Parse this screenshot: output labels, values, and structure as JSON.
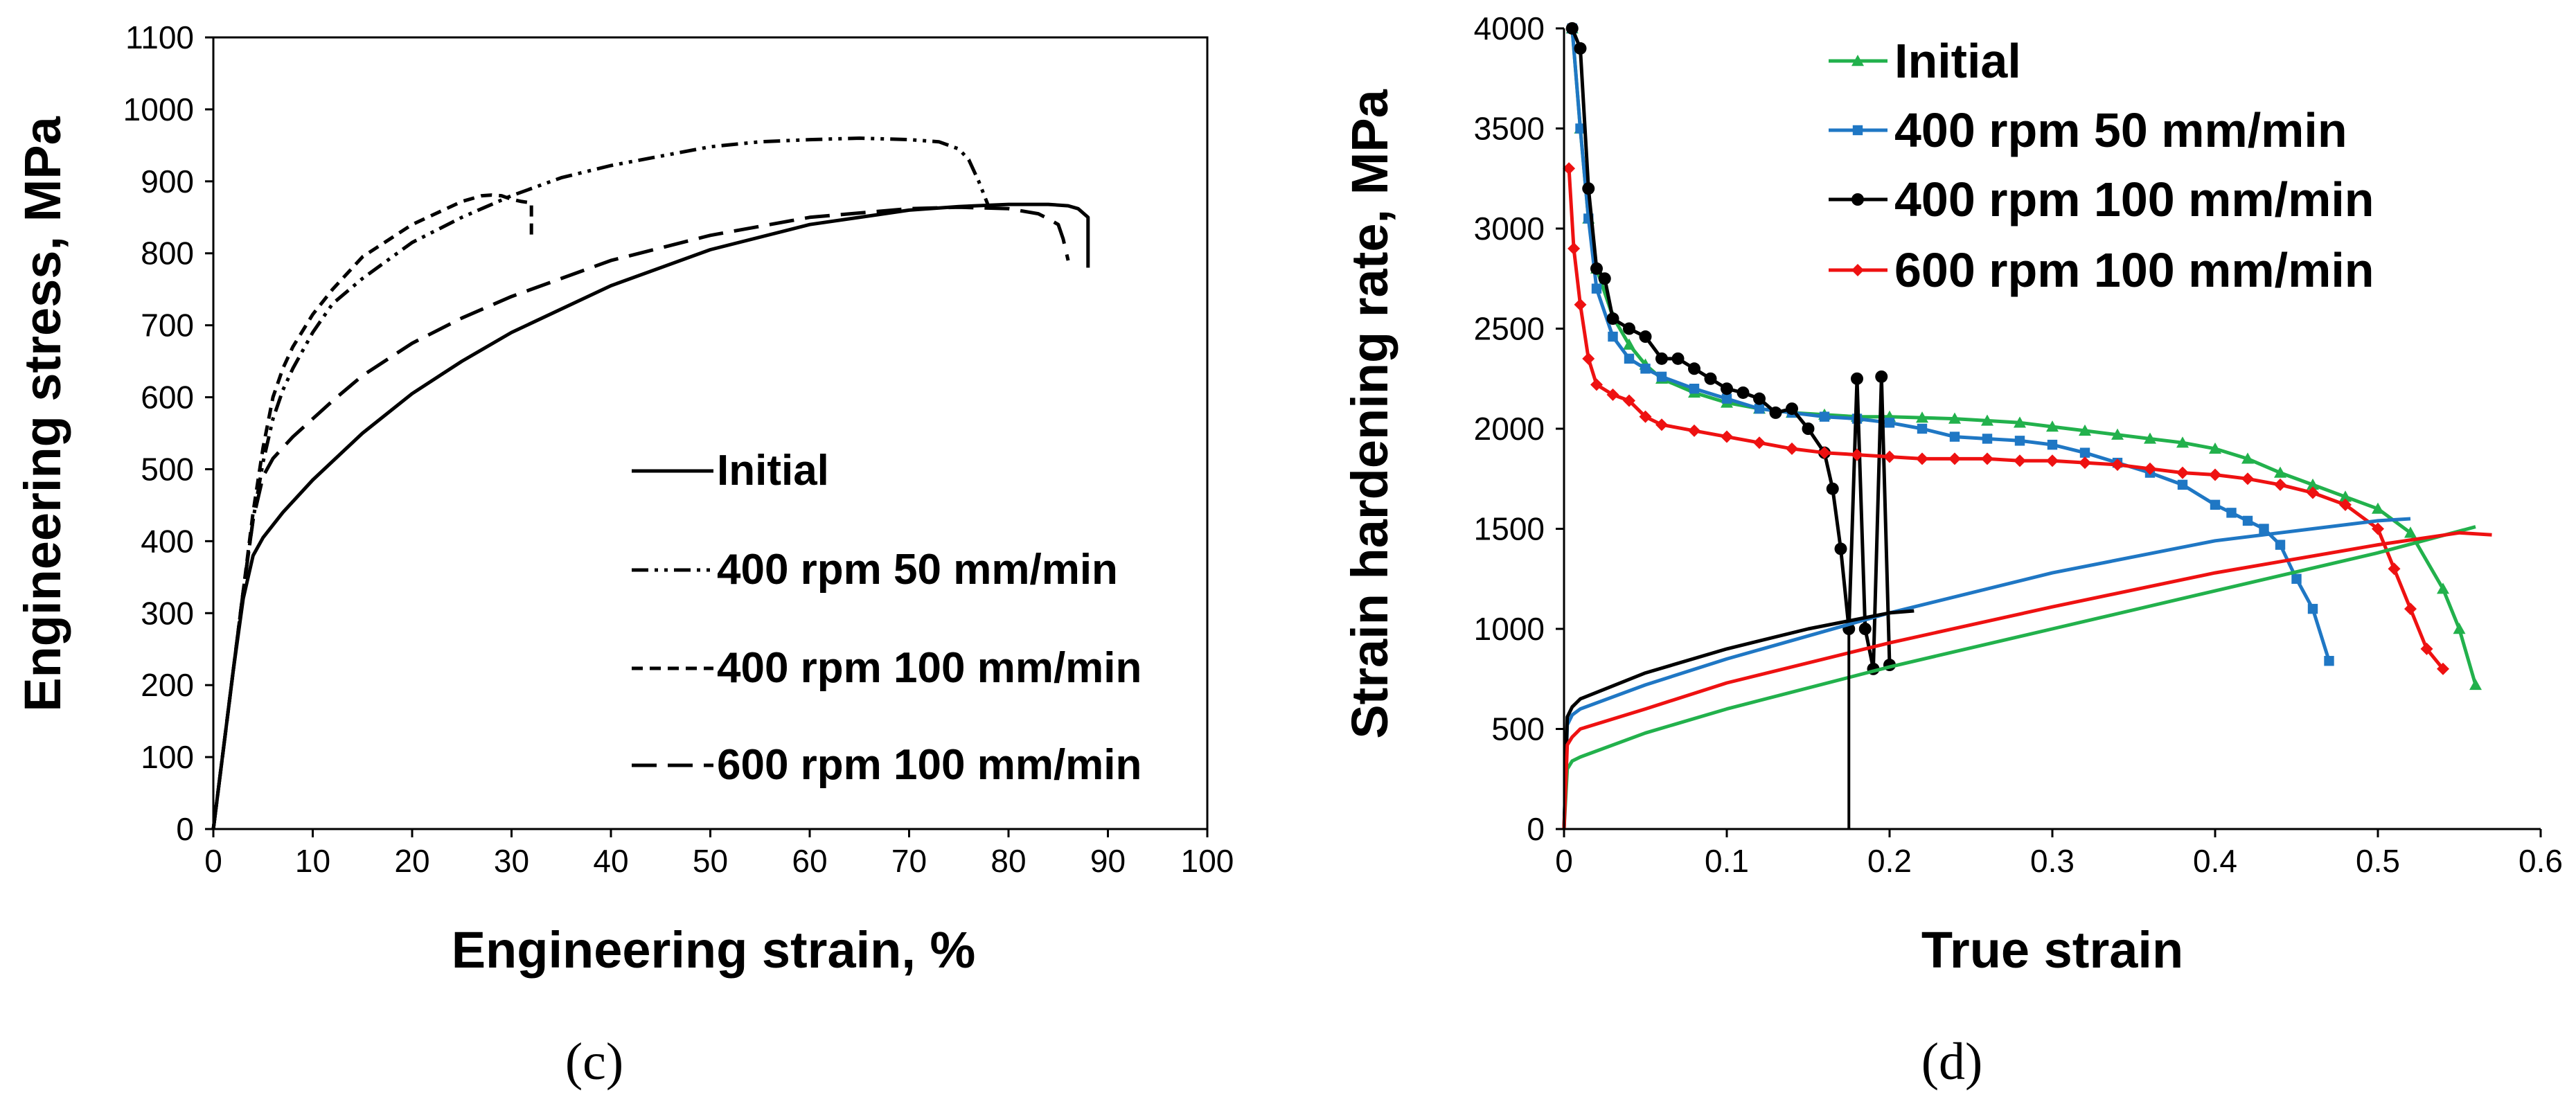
{
  "colors": {
    "green": "#22b14c",
    "blue": "#1f77c4",
    "black": "#000000",
    "red": "#ee1111"
  },
  "panels": {
    "c": "(c)",
    "d": "(d)"
  },
  "chart_data": [
    {
      "type": "line",
      "panel": "(c)",
      "xlabel": "Engineering strain, %",
      "ylabel": "Engineering stress, MPa",
      "xlim": [
        0,
        100
      ],
      "ylim": [
        0,
        1100
      ],
      "xticks": [
        "0",
        "10",
        "20",
        "30",
        "40",
        "50",
        "60",
        "70",
        "80",
        "90",
        "100"
      ],
      "yticks": [
        "0",
        "100",
        "200",
        "300",
        "400",
        "500",
        "600",
        "700",
        "800",
        "900",
        "1000",
        "1100"
      ],
      "grid": false,
      "legend_position": "bottom-right",
      "series": [
        {
          "name": "Initial",
          "dash": "solid",
          "color": "#000000",
          "x": [
            0,
            1,
            2,
            3,
            4,
            5,
            7,
            10,
            15,
            20,
            25,
            30,
            40,
            50,
            60,
            70,
            75,
            80,
            84,
            86,
            87,
            88,
            88
          ],
          "y": [
            0,
            110,
            220,
            320,
            380,
            405,
            440,
            485,
            550,
            605,
            650,
            690,
            755,
            805,
            840,
            860,
            865,
            868,
            868,
            866,
            862,
            850,
            780
          ]
        },
        {
          "name": "400 rpm 50 mm/min",
          "dash": "dashdotdot",
          "color": "#000000",
          "x": [
            0,
            1,
            2,
            3,
            4,
            5,
            6,
            7,
            8,
            10,
            12,
            15,
            20,
            25,
            30,
            35,
            40,
            50,
            55,
            60,
            65,
            70,
            73,
            75,
            76,
            77,
            78
          ],
          "y": [
            0,
            110,
            220,
            330,
            430,
            510,
            570,
            610,
            640,
            690,
            730,
            765,
            815,
            850,
            880,
            905,
            922,
            948,
            955,
            958,
            960,
            958,
            955,
            945,
            930,
            900,
            865
          ]
        },
        {
          "name": "400 rpm 100 mm/min",
          "dash": "dash-short",
          "color": "#000000",
          "x": [
            0,
            1,
            2,
            3,
            4,
            5,
            6,
            7,
            8,
            10,
            12,
            15,
            20,
            25,
            27,
            28,
            29,
            30,
            31,
            32,
            32
          ],
          "y": [
            0,
            110,
            220,
            330,
            440,
            530,
            600,
            640,
            670,
            715,
            750,
            795,
            840,
            872,
            880,
            881,
            880,
            875,
            872,
            870,
            820
          ]
        },
        {
          "name": "600 rpm 100 mm/min",
          "dash": "dash-long",
          "color": "#000000",
          "x": [
            0,
            1,
            2,
            3,
            4,
            5,
            6,
            7,
            8,
            10,
            12,
            15,
            20,
            25,
            30,
            40,
            50,
            60,
            70,
            75,
            80,
            83,
            84,
            85,
            85.5,
            86
          ],
          "y": [
            0,
            110,
            220,
            330,
            430,
            490,
            515,
            530,
            545,
            570,
            595,
            630,
            675,
            710,
            740,
            790,
            825,
            850,
            862,
            864,
            862,
            855,
            848,
            840,
            820,
            790
          ]
        }
      ]
    },
    {
      "type": "line",
      "panel": "(d)",
      "xlabel": "True strain",
      "ylabel": "Strain hardening rate, MPa",
      "xlim": [
        0,
        0.6
      ],
      "ylim": [
        0,
        4000
      ],
      "xticks": [
        "0",
        "0.1",
        "0.2",
        "0.3",
        "0.4",
        "0.5",
        "0.6"
      ],
      "yticks": [
        "0",
        "500",
        "1000",
        "1500",
        "2000",
        "2500",
        "3000",
        "3500",
        "4000"
      ],
      "grid": false,
      "legend_position": "top-left",
      "series": [
        {
          "name": "Initial",
          "marker": "triangle",
          "color": "#22b14c",
          "x": [
            0.005,
            0.01,
            0.015,
            0.02,
            0.03,
            0.04,
            0.05,
            0.06,
            0.08,
            0.1,
            0.12,
            0.14,
            0.16,
            0.18,
            0.2,
            0.22,
            0.24,
            0.26,
            0.28,
            0.3,
            0.32,
            0.34,
            0.36,
            0.38,
            0.4,
            0.42,
            0.44,
            0.46,
            0.48,
            0.5,
            0.52,
            0.54,
            0.55,
            0.56
          ],
          "y": [
            4000,
            3500,
            3050,
            2800,
            2560,
            2420,
            2320,
            2250,
            2180,
            2130,
            2100,
            2080,
            2070,
            2060,
            2060,
            2055,
            2050,
            2040,
            2030,
            2010,
            1990,
            1970,
            1950,
            1930,
            1900,
            1850,
            1780,
            1720,
            1660,
            1600,
            1480,
            1200,
            1000,
            720
          ]
        },
        {
          "name": "400 rpm 50 mm/min",
          "marker": "square",
          "color": "#1f77c4",
          "x": [
            0.005,
            0.01,
            0.015,
            0.02,
            0.03,
            0.04,
            0.05,
            0.06,
            0.08,
            0.1,
            0.12,
            0.14,
            0.16,
            0.18,
            0.2,
            0.22,
            0.24,
            0.26,
            0.28,
            0.3,
            0.32,
            0.34,
            0.36,
            0.38,
            0.4,
            0.41,
            0.42,
            0.43,
            0.44,
            0.45,
            0.46,
            0.47
          ],
          "y": [
            4000,
            3500,
            3050,
            2700,
            2460,
            2350,
            2300,
            2260,
            2200,
            2150,
            2100,
            2080,
            2060,
            2050,
            2030,
            2000,
            1960,
            1950,
            1940,
            1920,
            1880,
            1830,
            1780,
            1720,
            1620,
            1580,
            1540,
            1500,
            1420,
            1250,
            1100,
            840
          ]
        },
        {
          "name": "400 rpm 100 mm/min",
          "marker": "circle",
          "color": "#000000",
          "x": [
            0.005,
            0.01,
            0.015,
            0.02,
            0.025,
            0.03,
            0.04,
            0.05,
            0.06,
            0.07,
            0.08,
            0.09,
            0.1,
            0.11,
            0.12,
            0.13,
            0.14,
            0.15,
            0.16,
            0.165,
            0.17,
            0.175,
            0.18,
            0.185,
            0.19,
            0.195,
            0.2
          ],
          "y": [
            4000,
            3900,
            3200,
            2800,
            2750,
            2550,
            2500,
            2460,
            2350,
            2350,
            2300,
            2250,
            2200,
            2180,
            2150,
            2080,
            2100,
            2000,
            1880,
            1700,
            1400,
            1000,
            2250,
            1000,
            800,
            2260,
            820
          ]
        },
        {
          "name": "600 rpm 100 mm/min",
          "marker": "diamond",
          "color": "#ee1111",
          "x": [
            0.003,
            0.006,
            0.01,
            0.015,
            0.02,
            0.03,
            0.04,
            0.05,
            0.06,
            0.08,
            0.1,
            0.12,
            0.14,
            0.16,
            0.18,
            0.2,
            0.22,
            0.24,
            0.26,
            0.28,
            0.3,
            0.32,
            0.34,
            0.36,
            0.38,
            0.4,
            0.42,
            0.44,
            0.46,
            0.48,
            0.5,
            0.51,
            0.52,
            0.53,
            0.54
          ],
          "y": [
            3300,
            2900,
            2620,
            2350,
            2220,
            2170,
            2140,
            2060,
            2020,
            1990,
            1960,
            1930,
            1900,
            1880,
            1870,
            1860,
            1850,
            1850,
            1850,
            1840,
            1840,
            1830,
            1820,
            1800,
            1780,
            1770,
            1750,
            1720,
            1680,
            1620,
            1500,
            1300,
            1100,
            900,
            800
          ]
        },
        {
          "name": "",
          "marker": "none",
          "color": "#22b14c",
          "x": [
            0,
            0.002,
            0.005,
            0.01,
            0.05,
            0.1,
            0.2,
            0.3,
            0.4,
            0.5,
            0.56
          ],
          "y": [
            0,
            300,
            340,
            360,
            480,
            600,
            810,
            1000,
            1190,
            1380,
            1510
          ]
        },
        {
          "name": "",
          "marker": "none",
          "color": "#1f77c4",
          "x": [
            0,
            0.002,
            0.005,
            0.01,
            0.05,
            0.1,
            0.2,
            0.3,
            0.4,
            0.5,
            0.52
          ],
          "y": [
            0,
            520,
            570,
            600,
            720,
            850,
            1080,
            1280,
            1440,
            1540,
            1550
          ]
        },
        {
          "name": "",
          "marker": "none",
          "color": "#000000",
          "x": [
            0,
            0.002,
            0.005,
            0.01,
            0.05,
            0.1,
            0.15,
            0.2,
            0.215
          ],
          "y": [
            0,
            560,
            610,
            650,
            780,
            900,
            1000,
            1080,
            1090
          ]
        },
        {
          "name": "",
          "marker": "none",
          "color": "#ee1111",
          "x": [
            0,
            0.002,
            0.005,
            0.01,
            0.05,
            0.1,
            0.2,
            0.3,
            0.4,
            0.5,
            0.55,
            0.57
          ],
          "y": [
            0,
            420,
            460,
            500,
            600,
            730,
            930,
            1110,
            1280,
            1420,
            1480,
            1470
          ]
        }
      ]
    }
  ]
}
